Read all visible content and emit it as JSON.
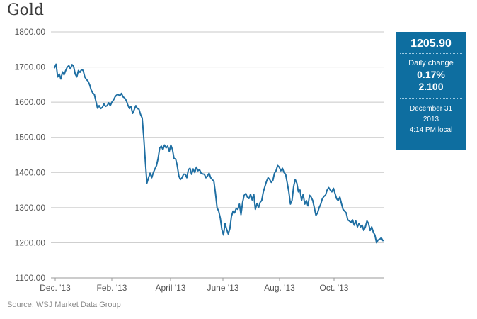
{
  "title": "Gold",
  "source": "Source: WSJ Market Data Group",
  "info_box": {
    "price": "1205.90",
    "change_label": "Daily change",
    "change_pct": "0.17%",
    "change_abs": "2.100",
    "date": "December 31",
    "year": "2013",
    "time": "4:14 PM local"
  },
  "colors": {
    "line": "#1f6fa3",
    "grid": "#c8c8c8",
    "box": "#0e6ea0"
  },
  "chart_data": {
    "type": "line",
    "title": "Gold",
    "xlabel": "",
    "ylabel": "",
    "ylim": [
      1100,
      1800
    ],
    "xlim": [
      "2013-12-01",
      "2013-12-31"
    ],
    "y_ticks": [
      "1800.00",
      "1700.00",
      "1600.00",
      "1500.00",
      "1400.00",
      "1300.00",
      "1200.00",
      "1100.00"
    ],
    "x_ticks": [
      "Dec. '13",
      "Feb. '13",
      "April '13",
      "June '13",
      "Aug. '13",
      "Oct. '13"
    ],
    "grid": true,
    "series": [
      {
        "values": [
          1698,
          1708,
          1672,
          1680,
          1666,
          1686,
          1678,
          1690,
          1700,
          1704,
          1695,
          1707,
          1702,
          1680,
          1672,
          1690,
          1685,
          1693,
          1690,
          1672,
          1665,
          1660,
          1650,
          1635,
          1626,
          1622,
          1602,
          1583,
          1590,
          1582,
          1585,
          1595,
          1588,
          1590,
          1598,
          1590,
          1600,
          1606,
          1615,
          1620,
          1622,
          1618,
          1625,
          1615,
          1612,
          1605,
          1592,
          1582,
          1588,
          1568,
          1578,
          1590,
          1582,
          1580,
          1565,
          1555,
          1500,
          1430,
          1370,
          1385,
          1398,
          1385,
          1400,
          1410,
          1420,
          1440,
          1470,
          1475,
          1465,
          1478,
          1470,
          1475,
          1460,
          1478,
          1465,
          1440,
          1438,
          1420,
          1390,
          1380,
          1385,
          1395,
          1395,
          1385,
          1408,
          1412,
          1395,
          1410,
          1400,
          1415,
          1405,
          1408,
          1398,
          1396,
          1395,
          1385,
          1390,
          1398,
          1385,
          1380,
          1375,
          1340,
          1300,
          1290,
          1270,
          1238,
          1222,
          1255,
          1238,
          1225,
          1240,
          1275,
          1290,
          1285,
          1298,
          1295,
          1310,
          1280,
          1315,
          1335,
          1340,
          1330,
          1326,
          1338,
          1322,
          1338,
          1295,
          1312,
          1300,
          1315,
          1320,
          1345,
          1360,
          1375,
          1385,
          1380,
          1372,
          1378,
          1398,
          1405,
          1420,
          1415,
          1405,
          1412,
          1400,
          1395,
          1370,
          1345,
          1310,
          1320,
          1360,
          1380,
          1370,
          1345,
          1350,
          1320,
          1338,
          1310,
          1320,
          1305,
          1335,
          1330,
          1320,
          1300,
          1278,
          1285,
          1300,
          1310,
          1325,
          1332,
          1335,
          1350,
          1357,
          1350,
          1345,
          1355,
          1340,
          1325,
          1320,
          1330,
          1312,
          1295,
          1290,
          1285,
          1265,
          1262,
          1258,
          1265,
          1250,
          1262,
          1245,
          1255,
          1245,
          1250,
          1235,
          1245,
          1262,
          1255,
          1235,
          1245,
          1230,
          1222,
          1200,
          1208,
          1210,
          1214,
          1205.9
        ]
      }
    ]
  }
}
